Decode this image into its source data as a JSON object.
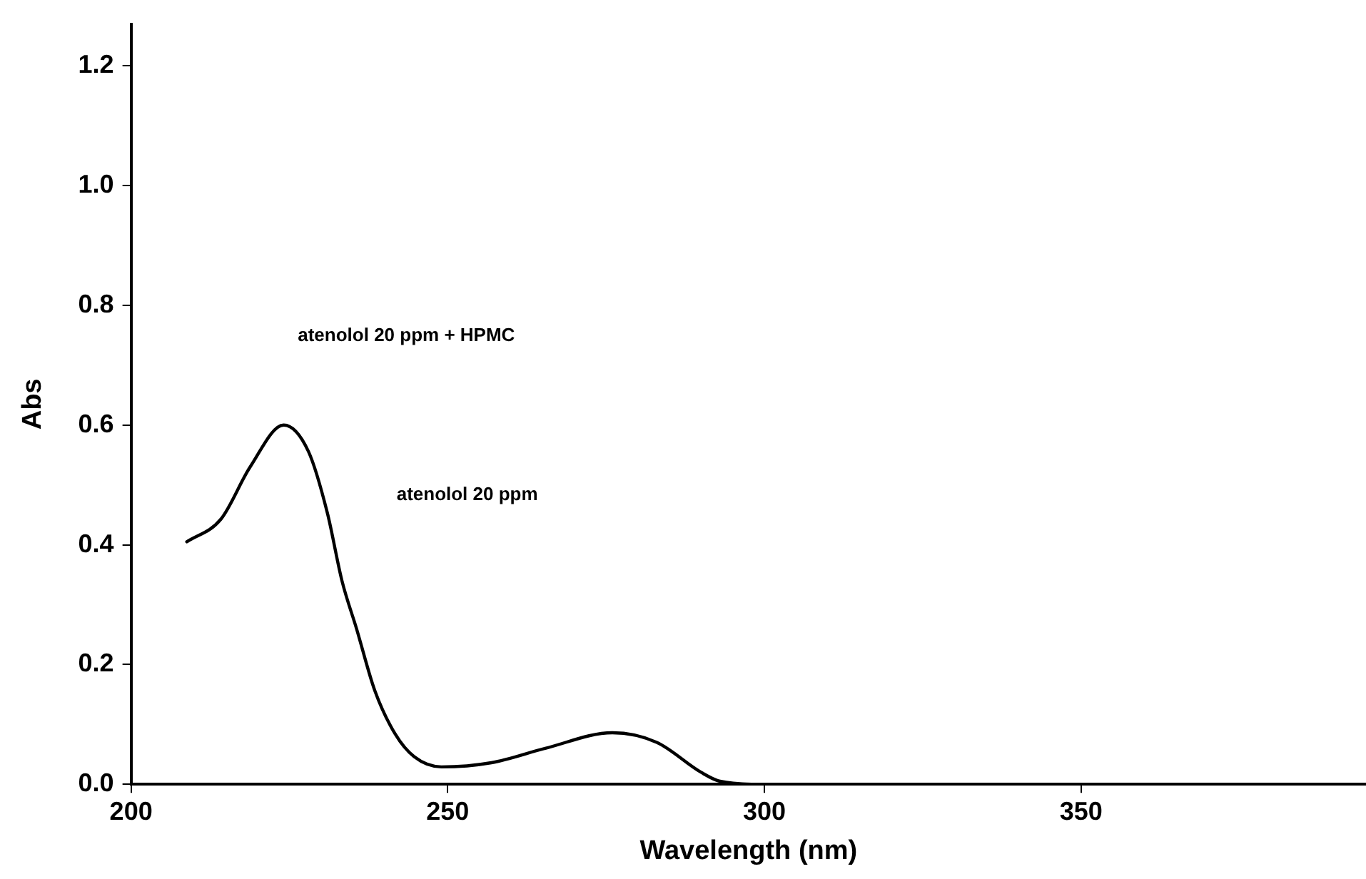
{
  "chart_data": {
    "type": "line",
    "xlabel": "Wavelength (nm)",
    "ylabel": "Abs",
    "annotations": [
      "atenolol 20 ppm + HPMC",
      "atenolol 20 ppm"
    ],
    "x": [
      208.8,
      214.2,
      218.8,
      224.1,
      228,
      231,
      233.3,
      235.6,
      238.5,
      241.7,
      244.7,
      249,
      256.9,
      265.4,
      276,
      283,
      290,
      293,
      300,
      320,
      350,
      395
    ],
    "series": [
      {
        "color": "#000000",
        "values": [
          0.405,
          0.443,
          0.53,
          0.6,
          0.556,
          0.453,
          0.34,
          0.26,
          0.156,
          0.084,
          0.046,
          0.029,
          0.036,
          0.06,
          0.086,
          0.07,
          0.02,
          0.005,
          0,
          0,
          0,
          0
        ]
      }
    ],
    "xlim": [
      200,
      395
    ],
    "ylim": [
      0,
      1.27
    ],
    "xticks": [
      200,
      250,
      300,
      350
    ],
    "yticks": [
      {
        "value": 0,
        "label": "0.0"
      },
      {
        "value": 0.2,
        "label": "0.2"
      },
      {
        "value": 0.4,
        "label": "0.4"
      },
      {
        "value": 0.6,
        "label": "0.6"
      },
      {
        "value": 0.8,
        "label": "0.8"
      },
      {
        "value": 1,
        "label": "1.0"
      },
      {
        "value": 1.2,
        "label": "1.2"
      }
    ],
    "grid": false,
    "legend": false,
    "marker": "none",
    "line_style": "solid"
  }
}
